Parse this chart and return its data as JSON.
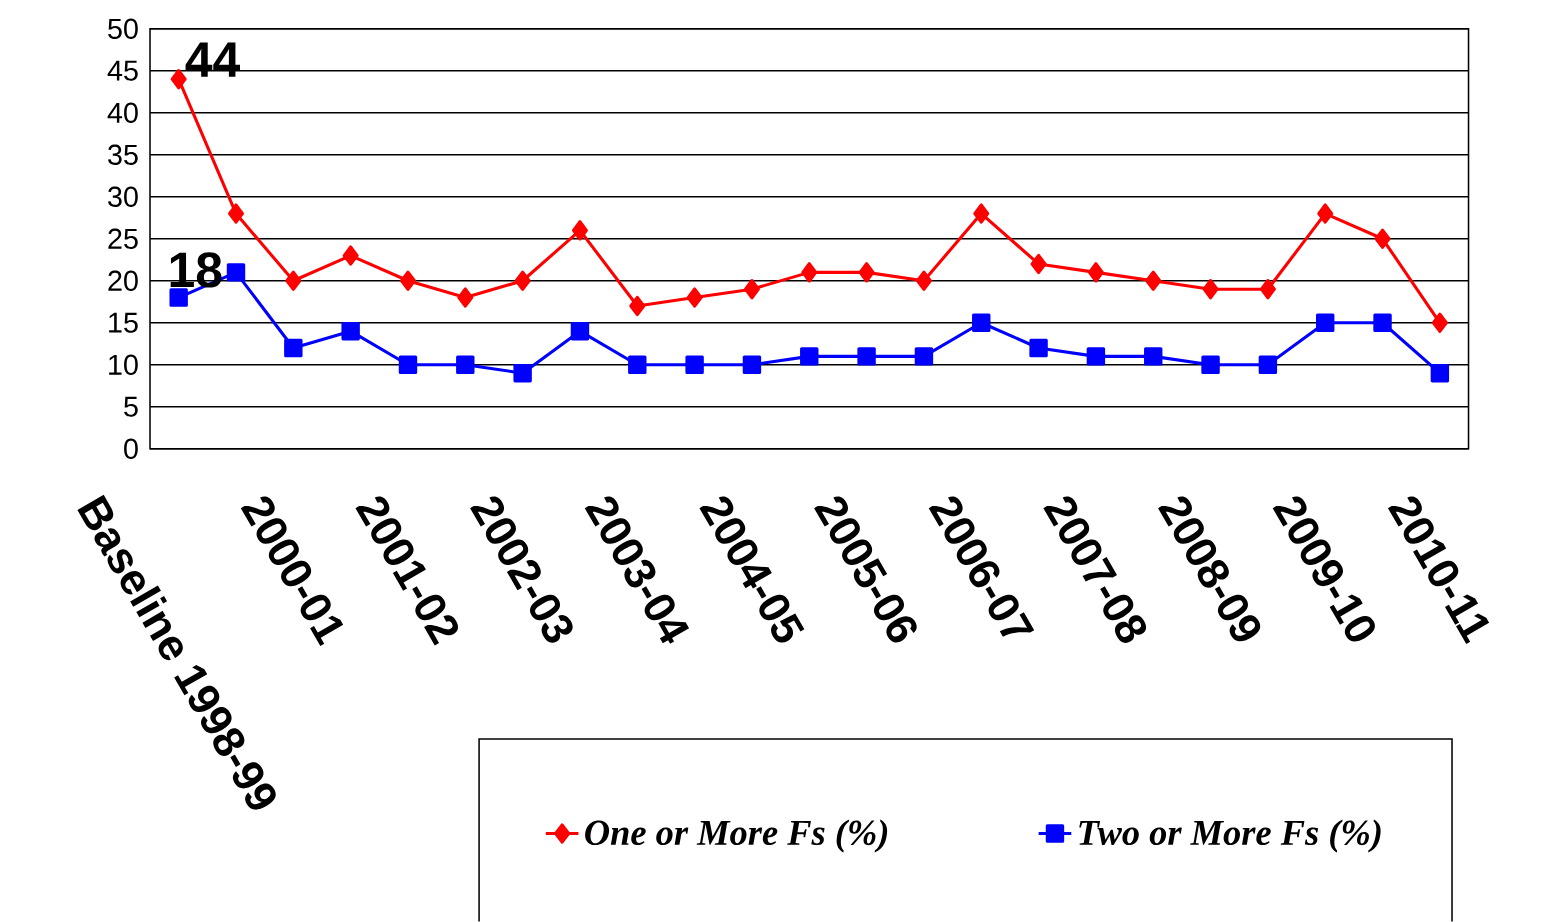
{
  "chart_data": {
    "type": "line",
    "categories": [
      "Baseline 1998-99",
      null,
      "2000-01",
      null,
      "2001-02",
      null,
      "2002-03",
      null,
      "2003-04",
      null,
      "2004-05",
      null,
      "2005-06",
      null,
      "2006-07",
      null,
      "2007-08",
      null,
      "2008-09",
      null,
      "2009-10",
      null,
      "2010-11"
    ],
    "series": [
      {
        "name": "One or More Fs (%)",
        "color": "#ff0000",
        "marker": "diamond",
        "values": [
          44,
          28,
          20,
          23,
          20,
          18,
          20,
          26,
          17,
          18,
          19,
          21,
          21,
          20,
          28,
          22,
          21,
          20,
          19,
          19,
          28,
          25,
          15
        ]
      },
      {
        "name": "Two or More Fs (%)",
        "color": "#0000ff",
        "marker": "square",
        "values": [
          18,
          21,
          12,
          14,
          10,
          10,
          9,
          14,
          10,
          10,
          10,
          11,
          11,
          11,
          15,
          12,
          11,
          11,
          10,
          10,
          15,
          15,
          9
        ]
      }
    ],
    "ylim": [
      0,
      50
    ],
    "yticks": [
      0,
      5,
      10,
      15,
      20,
      25,
      30,
      35,
      40,
      45,
      50
    ],
    "grid": "y",
    "legend": "bottom",
    "line_style": "solid",
    "annotations": [
      {
        "text": "44",
        "x": "Baseline 1998-99",
        "y": 44
      },
      {
        "text": "18",
        "x": "Baseline 1998-99",
        "y": 18
      }
    ]
  }
}
